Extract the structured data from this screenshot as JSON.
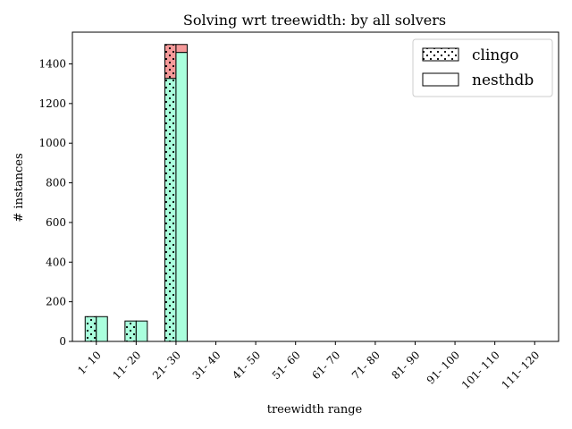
{
  "chart_data": {
    "type": "bar",
    "title": "Solving wrt treewidth: by all solvers",
    "xlabel": "treewidth range",
    "ylabel": "# instances",
    "ylim": [
      0,
      1560
    ],
    "yticks": [
      0,
      200,
      400,
      600,
      800,
      1000,
      1200,
      1400
    ],
    "categories": [
      "1- 10",
      "11- 20",
      "21- 30",
      "31- 40",
      "41- 50",
      "51- 60",
      "61- 70",
      "71- 80",
      "81- 90",
      "91- 100",
      "101- 110",
      "111- 120"
    ],
    "stack_note": "each solver bar is stacked: solved (mint) + unsolved (salmon)",
    "colors": {
      "solved": "#aaffdd",
      "unsolved": "#f59a9a",
      "edge": "#000000"
    },
    "series": [
      {
        "name": "clingo",
        "hatch": "dots",
        "solved": [
          125,
          103,
          1327,
          0,
          0,
          0,
          0,
          0,
          0,
          0,
          0,
          0
        ],
        "unsolved": [
          0,
          0,
          171,
          0,
          0,
          0,
          0,
          0,
          0,
          0,
          0,
          0
        ]
      },
      {
        "name": "nesthdb",
        "hatch": "none",
        "solved": [
          125,
          103,
          1458,
          0,
          0,
          0,
          0,
          0,
          0,
          0,
          0,
          0
        ],
        "unsolved": [
          0,
          0,
          40,
          0,
          0,
          0,
          0,
          0,
          0,
          0,
          0,
          0
        ]
      }
    ],
    "grid": false,
    "legend_position": "top-right"
  }
}
